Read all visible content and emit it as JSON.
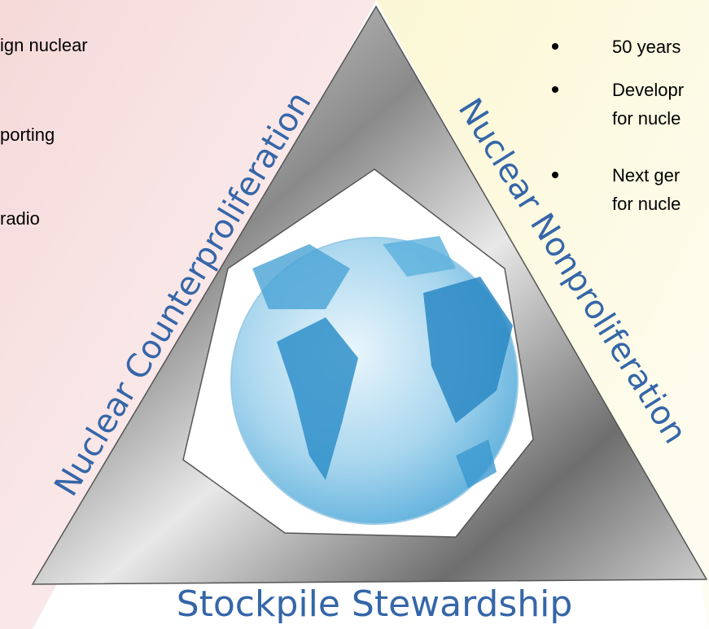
{
  "left_panel": {
    "lines": [
      "ign nuclear",
      "porting",
      "radio"
    ]
  },
  "right_panel": {
    "bullets": [
      [
        "50 years"
      ],
      [
        "Developr",
        "for nucle"
      ],
      [
        "Next ger",
        "for nucle"
      ]
    ]
  },
  "labels": {
    "left": "Nuclear Counterproliferation",
    "right": "Nuclear Nonproliferation",
    "bottom": "Stockpile Stewardship"
  }
}
